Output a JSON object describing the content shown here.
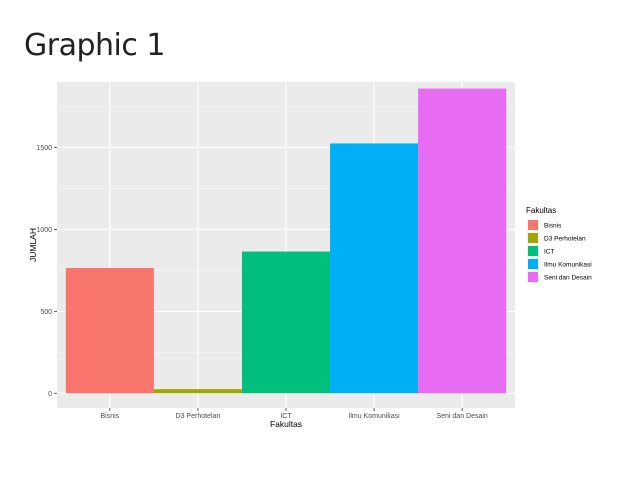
{
  "page": {
    "title": "Graphic 1"
  },
  "chart_data": {
    "type": "bar",
    "categories": [
      "Bisnis",
      "D3 Perhotelan",
      "ICT",
      "Ilmu Komunikasi",
      "Seni dan Desain"
    ],
    "values": [
      765,
      25,
      865,
      1525,
      1860
    ],
    "colors": [
      "#F8766D",
      "#A3A500",
      "#00BF7D",
      "#00B0F6",
      "#E76BF3"
    ],
    "xlabel": "Fakultas",
    "ylabel": "JUMLAH",
    "yticks": [
      0,
      500,
      1000,
      1500
    ],
    "ylim": [
      -90,
      1900
    ],
    "grid": true,
    "legend": {
      "title": "Fakultas",
      "placement": "right",
      "entries": [
        "Bisnis",
        "D3 Perhotelan",
        "ICT",
        "Ilmu Komunikasi",
        "Seni dan Desain"
      ]
    }
  }
}
